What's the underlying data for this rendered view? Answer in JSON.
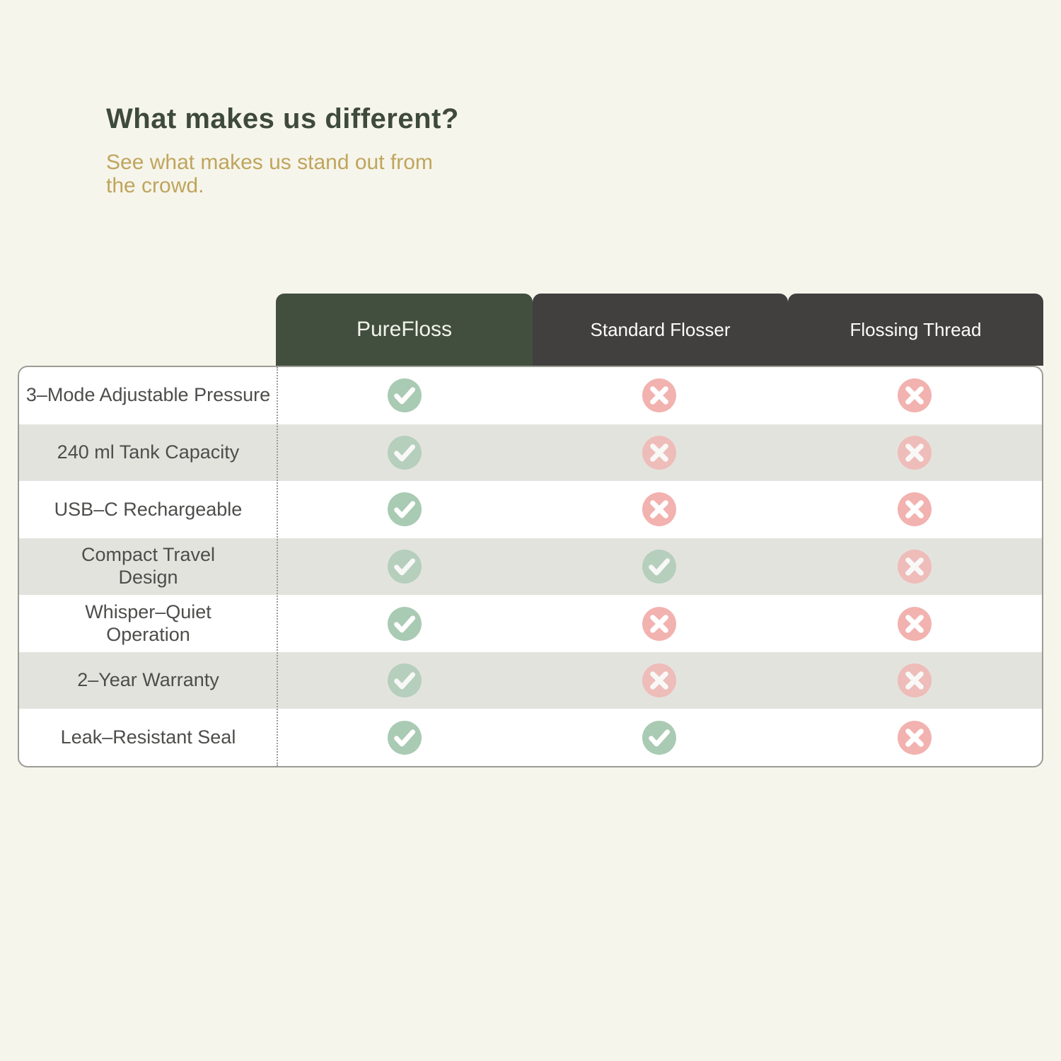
{
  "header": {
    "title": "What makes us different?",
    "subtitle": "See what makes us stand out from the crowd."
  },
  "chart_data": {
    "type": "table",
    "title": "What makes us different?",
    "subtitle": "See what makes us stand out from the crowd.",
    "columns": [
      {
        "label": "PureFloss",
        "style": "brand"
      },
      {
        "label": "Standard Flosser",
        "style": "competitor"
      },
      {
        "label": "Flossing Thread",
        "style": "competitor"
      }
    ],
    "rows": [
      {
        "feature": "3–Mode Adjustable Pressure",
        "marks": [
          "check",
          "cross",
          "cross"
        ]
      },
      {
        "feature": "240 ml Tank Capacity",
        "marks": [
          "check",
          "cross",
          "cross"
        ]
      },
      {
        "feature": "USB–C Rechargeable",
        "marks": [
          "check",
          "cross",
          "cross"
        ]
      },
      {
        "feature": "Compact Travel\nDesign",
        "marks": [
          "check",
          "check",
          "cross"
        ]
      },
      {
        "feature": "Whisper–Quiet\nOperation",
        "marks": [
          "check",
          "cross",
          "cross"
        ]
      },
      {
        "feature": "2–Year Warranty",
        "marks": [
          "check",
          "cross",
          "cross"
        ]
      },
      {
        "feature": "Leak–Resistant Seal",
        "marks": [
          "check",
          "check",
          "cross"
        ]
      }
    ],
    "mark_meaning": {
      "check": "feature included",
      "cross": "feature not included"
    }
  },
  "icons": {
    "check": "check-icon",
    "cross": "cross-icon"
  },
  "colors": {
    "page_bg": "#F6F5EC",
    "title_text": "#3E4A3B",
    "subtitle_text": "#BFA55C",
    "brand_tab_bg": "#424F3E",
    "competitor_tab_bg": "#41403E",
    "tab_text": "#FCFCFB",
    "row_alt_bg": "#E3E3DE",
    "check_circle": "#A9CAB3",
    "cross_circle": "#F2B2AF",
    "table_border": "#9C9C96",
    "feature_text": "#4D4D4B"
  }
}
